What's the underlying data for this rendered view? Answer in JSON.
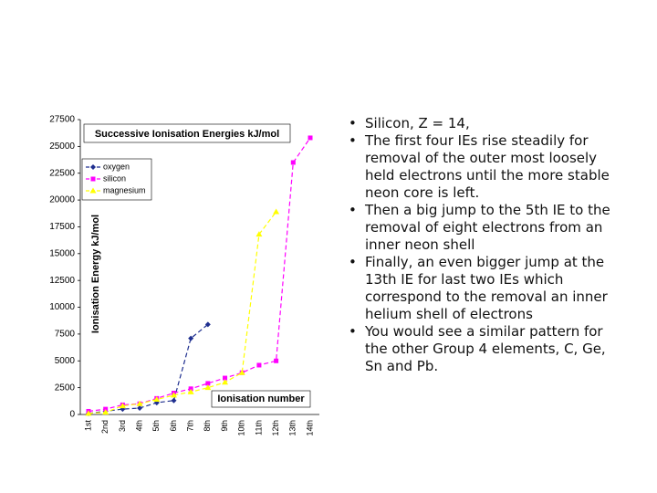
{
  "chart_data": {
    "type": "line",
    "title": "Successive Ionisation Energies kJ/mol",
    "y_label": "Ionisation Energy kJ/mol",
    "x_label": "Ionisation number",
    "categories": [
      "1st",
      "2nd",
      "3rd",
      "4th",
      "5th",
      "6th",
      "7th",
      "8th",
      "9th",
      "10th",
      "11th",
      "12th",
      "13th",
      "14th"
    ],
    "series": [
      {
        "name": "oxygen",
        "color": "#1f2f8f",
        "marker": "diamond",
        "values": [
          100,
          300,
          500,
          600,
          1100,
          1300,
          7100,
          8400,
          null,
          null,
          null,
          null,
          null,
          null
        ]
      },
      {
        "name": "silicon",
        "color": "#ff00ff",
        "marker": "square",
        "values": [
          300,
          500,
          900,
          1000,
          1500,
          2000,
          2400,
          2900,
          3400,
          3900,
          4600,
          5000,
          23500,
          25800
        ]
      },
      {
        "name": "magnesium",
        "color": "#ffff00",
        "marker": "triangle",
        "values": [
          100,
          200,
          800,
          1000,
          1400,
          1800,
          2100,
          2500,
          3000,
          3900,
          16800,
          18900,
          null,
          null
        ]
      }
    ],
    "ylim": [
      0,
      27500
    ],
    "yticks": [
      0,
      2500,
      5000,
      7500,
      10000,
      12500,
      15000,
      17500,
      20000,
      22500,
      25000,
      27500
    ],
    "grid": false
  },
  "bullets": [
    "Silicon, Z = 14,",
    "The first four IEs rise steadily for removal of the outer most loosely held electrons until the more stable neon core is left.",
    "Then a big jump to the 5th IE to the removal of eight electrons from an inner neon shell",
    "Finally, an even bigger jump at the 13th IE for last two IEs which correspond to the removal an inner helium shell of electrons",
    "You would see a similar pattern for the other Group 4 elements, C, Ge, Sn and Pb."
  ]
}
